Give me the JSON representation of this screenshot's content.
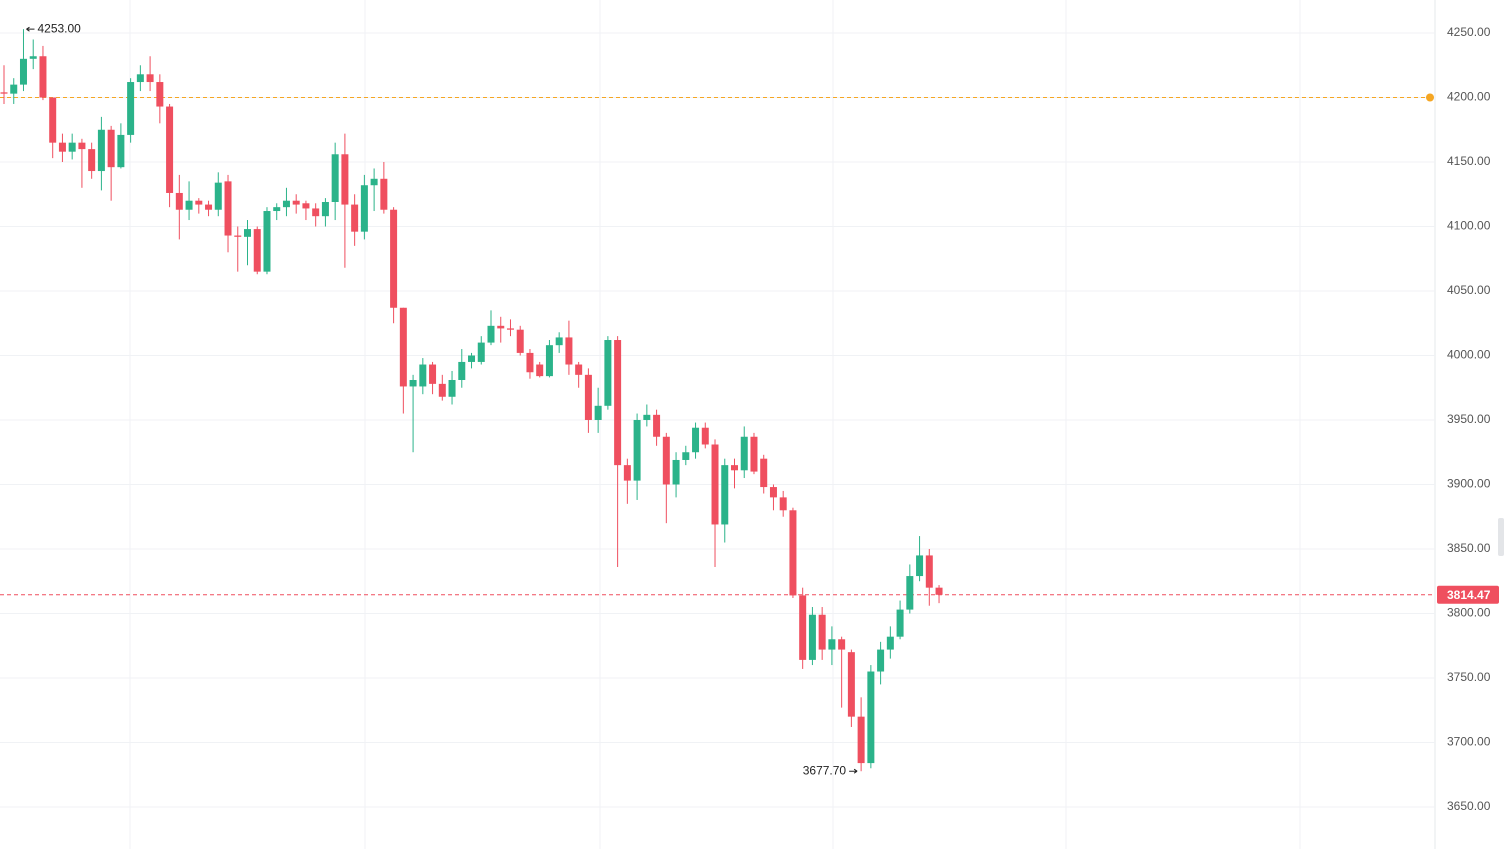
{
  "chart_data": {
    "type": "candlestick",
    "up_color": "#2bb38a",
    "down_color": "#ef4f5f",
    "ylim": [
      3617.4,
      4275.6
    ],
    "yticks": [
      {
        "value": 3650,
        "label": "3650.00"
      },
      {
        "value": 3700,
        "label": "3700.00"
      },
      {
        "value": 3750,
        "label": "3750.00"
      },
      {
        "value": 3800,
        "label": "3800.00"
      },
      {
        "value": 3850,
        "label": "3850.00"
      },
      {
        "value": 3900,
        "label": "3900.00"
      },
      {
        "value": 3950,
        "label": "3950.00"
      },
      {
        "value": 4000,
        "label": "4000.00"
      },
      {
        "value": 4050,
        "label": "4050.00"
      },
      {
        "value": 4100,
        "label": "4100.00"
      },
      {
        "value": 4150,
        "label": "4150.00"
      },
      {
        "value": 4200,
        "label": "4200.00"
      },
      {
        "value": 4250,
        "label": "4250.00"
      }
    ],
    "grid": true,
    "open": [
      4204,
      4203,
      4210,
      4230,
      4232,
      4200,
      4165,
      4158,
      4165,
      4160,
      4143,
      4175,
      4146,
      4171,
      4212,
      4218,
      4212,
      4193,
      4126,
      4113,
      4120,
      4117,
      4113,
      4135,
      4093,
      4092,
      4098,
      4065,
      4112,
      4115,
      4120,
      4118,
      4114,
      4108,
      4119,
      4156,
      4117,
      4096,
      4132,
      4137,
      4113,
      4037,
      3976,
      3976,
      3993,
      3978,
      3968,
      3981,
      3995,
      3995,
      4010,
      4023,
      4021,
      4020,
      4002,
      3993,
      3984,
      4008,
      4014,
      3993,
      3985,
      3950,
      3961,
      4012,
      3915,
      3903,
      3950,
      3954,
      3937,
      3900,
      3919,
      3925,
      3944,
      3931,
      3869,
      3915,
      3911,
      3937,
      3920,
      3898,
      3890,
      3880,
      3814,
      3764,
      3799,
      3772,
      3780,
      3770,
      3720,
      3684,
      3755,
      3772,
      3782,
      3803,
      3829,
      3845,
      3820
    ],
    "high": [
      4225,
      4215,
      4253,
      4245,
      4240,
      4200,
      4172,
      4172,
      4168,
      4165,
      4185,
      4178,
      4180,
      4215,
      4225,
      4232,
      4218,
      4195,
      4140,
      4135,
      4122,
      4120,
      4142,
      4140,
      4100,
      4105,
      4100,
      4115,
      4118,
      4130,
      4125,
      4120,
      4118,
      4122,
      4165,
      4172,
      4125,
      4140,
      4145,
      4150,
      4115,
      4037,
      3985,
      3998,
      3995,
      3985,
      3988,
      4005,
      4002,
      4015,
      4035,
      4030,
      4028,
      4023,
      4005,
      3995,
      4012,
      4018,
      4027,
      3995,
      3990,
      3975,
      4015,
      4015,
      3920,
      3955,
      3962,
      3958,
      3940,
      3925,
      3930,
      3948,
      3948,
      3935,
      3920,
      3920,
      3945,
      3940,
      3923,
      3900,
      3895,
      3882,
      3820,
      3805,
      3805,
      3790,
      3782,
      3772,
      3735,
      3760,
      3778,
      3790,
      3810,
      3838,
      3860,
      3850,
      3822
    ],
    "low": [
      4195,
      4195,
      4205,
      4222,
      4198,
      4153,
      4150,
      4152,
      4130,
      4137,
      4128,
      4120,
      4145,
      4165,
      4205,
      4205,
      4180,
      4115,
      4090,
      4105,
      4110,
      4108,
      4108,
      4080,
      4065,
      4070,
      4063,
      4063,
      4105,
      4108,
      4110,
      4105,
      4100,
      4100,
      4105,
      4068,
      4085,
      4090,
      4112,
      4110,
      4025,
      3955,
      3925,
      3970,
      3970,
      3965,
      3962,
      3975,
      3990,
      3993,
      4008,
      4010,
      4015,
      4000,
      3982,
      3983,
      3983,
      4002,
      3985,
      3975,
      3940,
      3940,
      3958,
      3836,
      3885,
      3888,
      3945,
      3930,
      3870,
      3890,
      3915,
      3920,
      3928,
      3836,
      3855,
      3897,
      3905,
      3908,
      3893,
      3880,
      3875,
      3812,
      3757,
      3760,
      3764,
      3760,
      3727,
      3712,
      3677.7,
      3680,
      3745,
      3765,
      3780,
      3800,
      3825,
      3806,
      3808
    ],
    "close": [
      4203,
      4210,
      4230,
      4232,
      4200,
      4165,
      4158,
      4165,
      4160,
      4143,
      4175,
      4146,
      4171,
      4212,
      4218,
      4212,
      4193,
      4126,
      4113,
      4120,
      4117,
      4113,
      4134,
      4093,
      4092,
      4098,
      4065,
      4112,
      4115,
      4120,
      4117,
      4114,
      4108,
      4119,
      4156,
      4117,
      4096,
      4132,
      4137,
      4113,
      4037,
      3976,
      3981,
      3993,
      3978,
      3968,
      3981,
      3995,
      4000,
      4010,
      4023,
      4021,
      4020,
      4002,
      3987,
      3984,
      4008,
      4014,
      3993,
      3985,
      3950,
      3961,
      4012,
      3915,
      3903,
      3950,
      3954,
      3937,
      3900,
      3919,
      3925,
      3944,
      3931,
      3869,
      3915,
      3911,
      3937,
      3910,
      3898,
      3890,
      3880,
      3814,
      3764,
      3799,
      3772,
      3780,
      3772,
      3720,
      3684,
      3755,
      3772,
      3782,
      3803,
      3829,
      3845,
      3820,
      3814.47
    ],
    "high_marker": {
      "value": 4253,
      "label": "4253.00"
    },
    "low_marker": {
      "value": 3677.7,
      "label": "3677.70"
    },
    "alert_level": 4200,
    "alert_color": "#f5a623",
    "last_price": {
      "value": 3814.47,
      "label": "3814.47"
    },
    "last_color": "#ef4f5f"
  }
}
